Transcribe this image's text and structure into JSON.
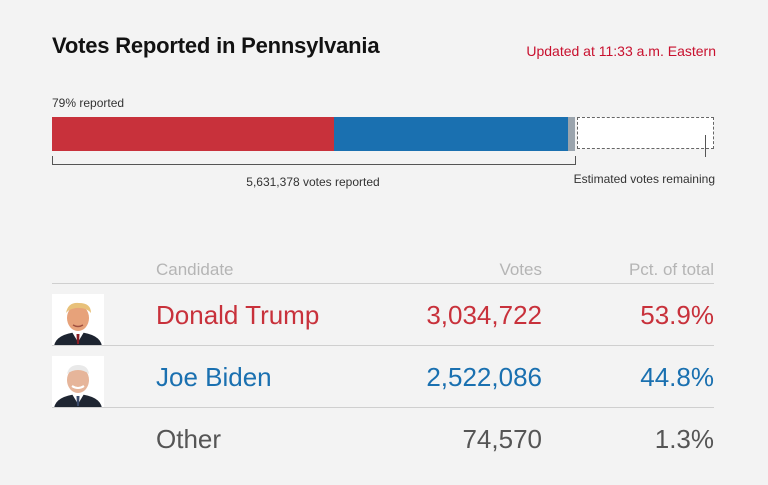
{
  "header": {
    "title": "Votes Reported in Pennsylvania",
    "updated": "Updated at 11:33 a.m. Eastern"
  },
  "progress": {
    "percent_reported_label": "79% reported",
    "votes_reported_label": "5,631,378 votes reported",
    "remaining_label": "Estimated votes remaining"
  },
  "colors": {
    "republican": "#c8313b",
    "democrat": "#1a70b0",
    "other": "#9aa4ad",
    "updated_text": "#c8102e"
  },
  "table": {
    "headers": {
      "candidate": "Candidate",
      "votes": "Votes",
      "pct": "Pct. of total"
    },
    "rows": [
      {
        "name": "Donald Trump",
        "votes": "3,034,722",
        "pct": "53.9%"
      },
      {
        "name": "Joe Biden",
        "votes": "2,522,086",
        "pct": "44.8%"
      },
      {
        "name": "Other",
        "votes": "74,570",
        "pct": "1.3%"
      }
    ]
  },
  "chart_data": {
    "type": "bar",
    "title": "Votes Reported in Pennsylvania",
    "orientation": "horizontal-stacked",
    "categories": [
      "Donald Trump",
      "Joe Biden",
      "Other",
      "Estimated votes remaining"
    ],
    "values": [
      3034722,
      2522086,
      74570,
      1497000
    ],
    "percent_reported": 79,
    "total_reported": 5631378
  }
}
